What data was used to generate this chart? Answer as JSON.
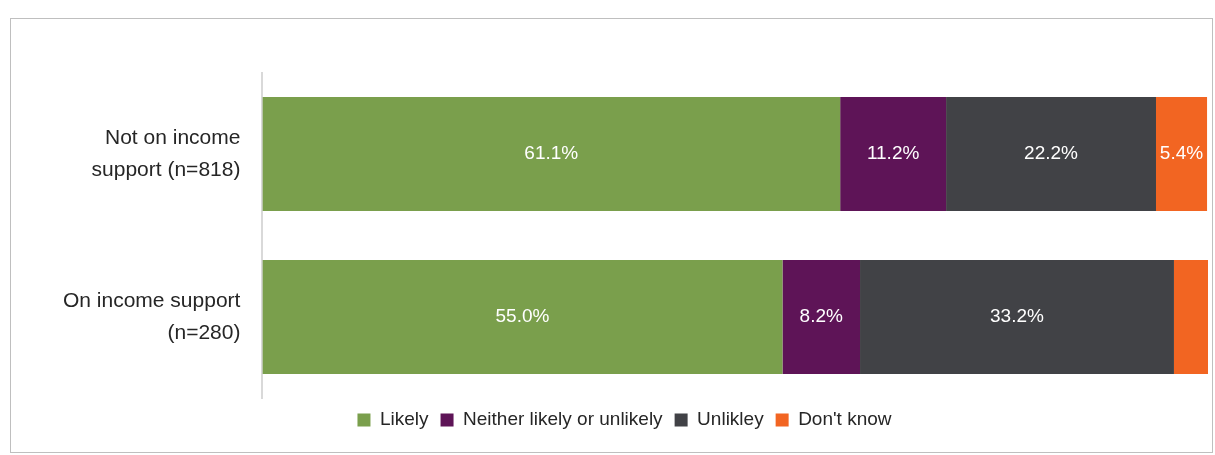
{
  "chart_data": {
    "type": "bar",
    "orientation": "horizontal",
    "stacked": true,
    "categories": [
      "Not on income support (n=818)",
      "On income support (n=280)"
    ],
    "series": [
      {
        "name": "Likely",
        "color": "#7a9f4c",
        "values": [
          61.1,
          55.0
        ],
        "value_labels": [
          "61.1%",
          "55.0%"
        ]
      },
      {
        "name": "Neither likely or unlikely",
        "color": "#5e1457",
        "values": [
          11.2,
          8.2
        ],
        "value_labels": [
          "11.2%",
          "8.2%"
        ]
      },
      {
        "name": "Unlikley",
        "color": "#414246",
        "values": [
          22.2,
          33.2
        ],
        "value_labels": [
          "22.2%",
          "33.2%"
        ]
      },
      {
        "name": "Don't know",
        "color": "#f26522",
        "values": [
          5.4,
          3.6
        ],
        "value_labels": [
          "5.4%",
          null
        ]
      }
    ],
    "xlim": [
      0,
      100
    ],
    "tick_labels": "y",
    "legend": "bottom"
  }
}
